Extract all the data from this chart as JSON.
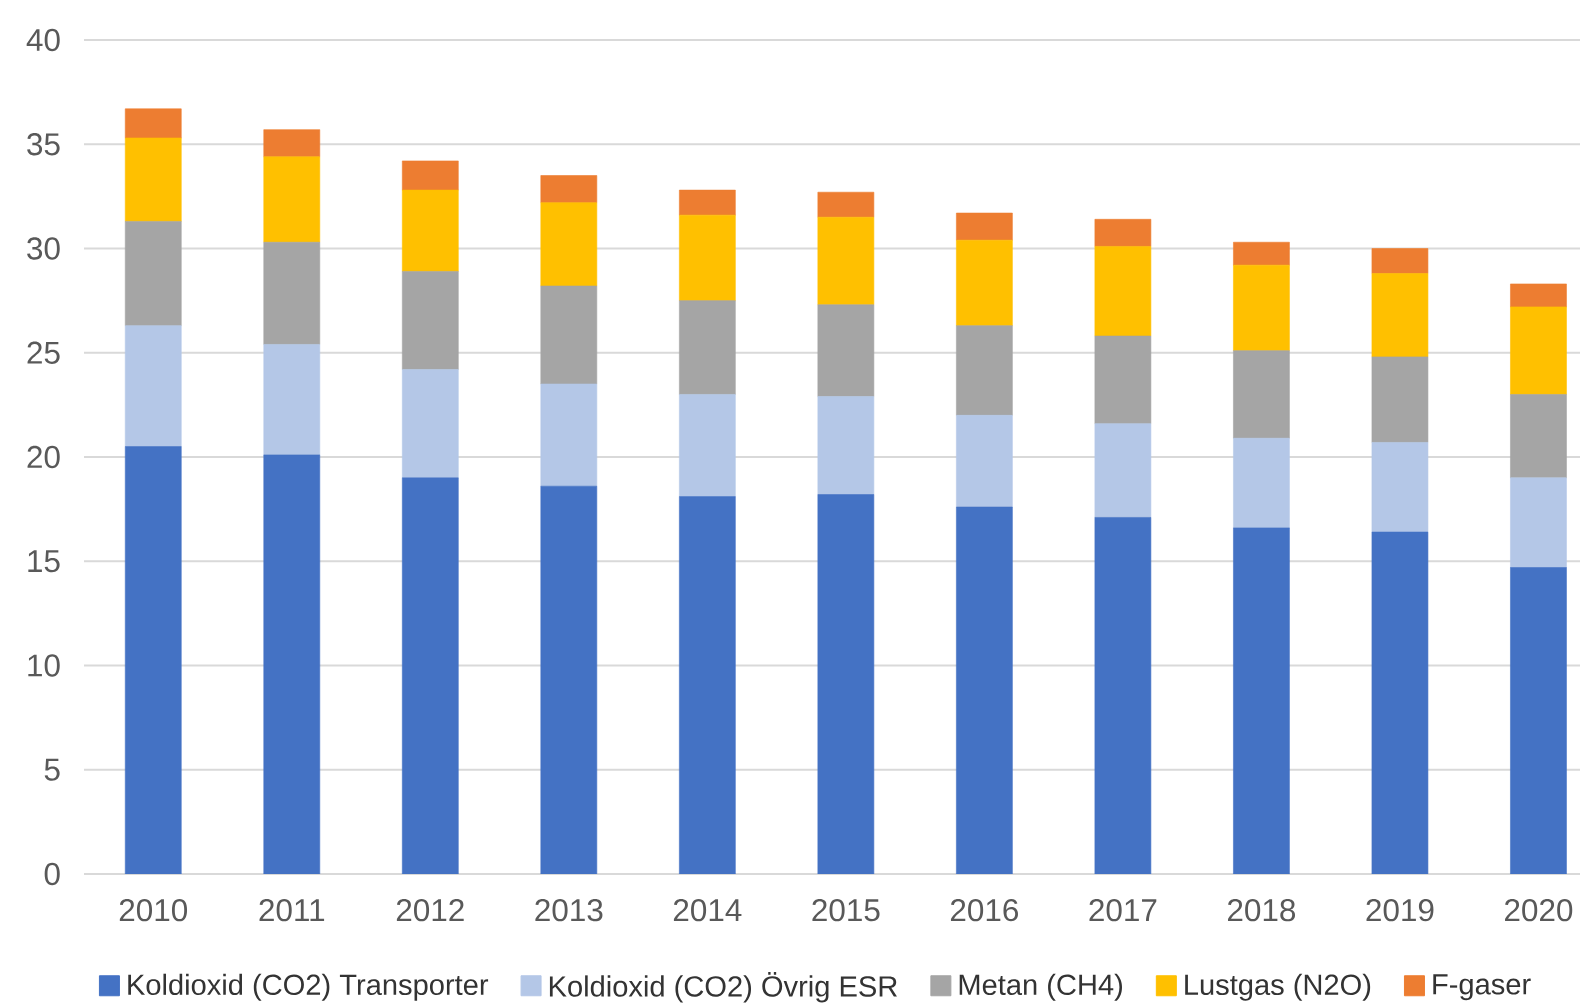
{
  "chart_data": {
    "type": "bar",
    "stacked": true,
    "categories": [
      "2010",
      "2011",
      "2012",
      "2013",
      "2014",
      "2015",
      "2016",
      "2017",
      "2018",
      "2019",
      "2020"
    ],
    "series": [
      {
        "name": "Koldioxid (CO2) Transporter",
        "color": "#4472c4",
        "values": [
          20.5,
          20.1,
          19.0,
          18.6,
          18.1,
          18.2,
          17.6,
          17.1,
          16.6,
          16.4,
          14.7
        ]
      },
      {
        "name": "Koldioxid (CO2) Övrig ESR",
        "color": "#b4c7e7",
        "values": [
          5.8,
          5.3,
          5.2,
          4.9,
          4.9,
          4.7,
          4.4,
          4.5,
          4.3,
          4.3,
          4.3
        ]
      },
      {
        "name": "Metan (CH4)",
        "color": "#a5a5a5",
        "values": [
          5.0,
          4.9,
          4.7,
          4.7,
          4.5,
          4.4,
          4.3,
          4.2,
          4.2,
          4.1,
          4.0
        ]
      },
      {
        "name": "Lustgas (N2O)",
        "color": "#ffc000",
        "values": [
          4.0,
          4.1,
          3.9,
          4.0,
          4.1,
          4.2,
          4.1,
          4.3,
          4.1,
          4.0,
          4.2
        ]
      },
      {
        "name": "F-gaser",
        "color": "#ed7d31",
        "values": [
          1.4,
          1.3,
          1.4,
          1.3,
          1.2,
          1.2,
          1.3,
          1.3,
          1.1,
          1.2,
          1.1
        ]
      }
    ],
    "ylim": [
      0,
      40
    ],
    "yticks": [
      0,
      5,
      10,
      15,
      20,
      25,
      30,
      35,
      40
    ],
    "grid": "y",
    "legend": "bottom"
  }
}
